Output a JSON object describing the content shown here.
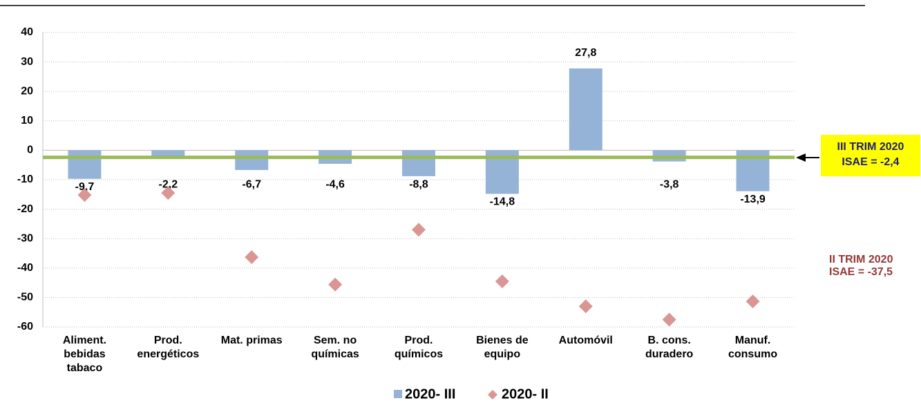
{
  "chart_data": {
    "type": "bar",
    "categories": [
      [
        "Aliment.",
        "bebidas",
        "tabaco"
      ],
      [
        "Prod.",
        "energéticos"
      ],
      [
        "Mat. primas"
      ],
      [
        "Sem. no",
        "químicas"
      ],
      [
        "Prod.",
        "químicos"
      ],
      [
        "Bienes de",
        "equipo"
      ],
      [
        "Automóvil"
      ],
      [
        "B. cons.",
        "duradero"
      ],
      [
        "Manuf.",
        "consumo"
      ]
    ],
    "series": [
      {
        "name": "2020- III",
        "color": "#95b3d7",
        "values": [
          -9.7,
          -2.2,
          -6.7,
          -4.6,
          -8.8,
          -14.8,
          27.8,
          -3.8,
          -13.9
        ],
        "value_labels": [
          "-9,7",
          "-2,2",
          "-6,7",
          "-4,6",
          "-8,8",
          "-14,8",
          "27,8",
          "-3,8",
          "-13,9"
        ]
      },
      {
        "name": "2020- II",
        "color": "#d99694",
        "values": [
          -15.2,
          -14.5,
          -36.3,
          -45.6,
          -27,
          -44.5,
          -53,
          -57.5,
          -51.3
        ]
      }
    ],
    "reference_line": {
      "value": -2.4,
      "color": "#9bbb59"
    },
    "annotations": [
      {
        "lines": [
          "III TRIM 2020",
          "ISAE = -2,4"
        ],
        "background": "#ffff00",
        "color": "#1f1f7a"
      },
      {
        "lines": [
          "II TRIM 2020",
          "ISAE = -37,5"
        ],
        "color": "#953735"
      }
    ],
    "ylim": [
      -60,
      40
    ],
    "yticks": [
      -60,
      -50,
      -40,
      -30,
      -20,
      -10,
      0,
      10,
      20,
      30,
      40
    ],
    "grid": true
  }
}
